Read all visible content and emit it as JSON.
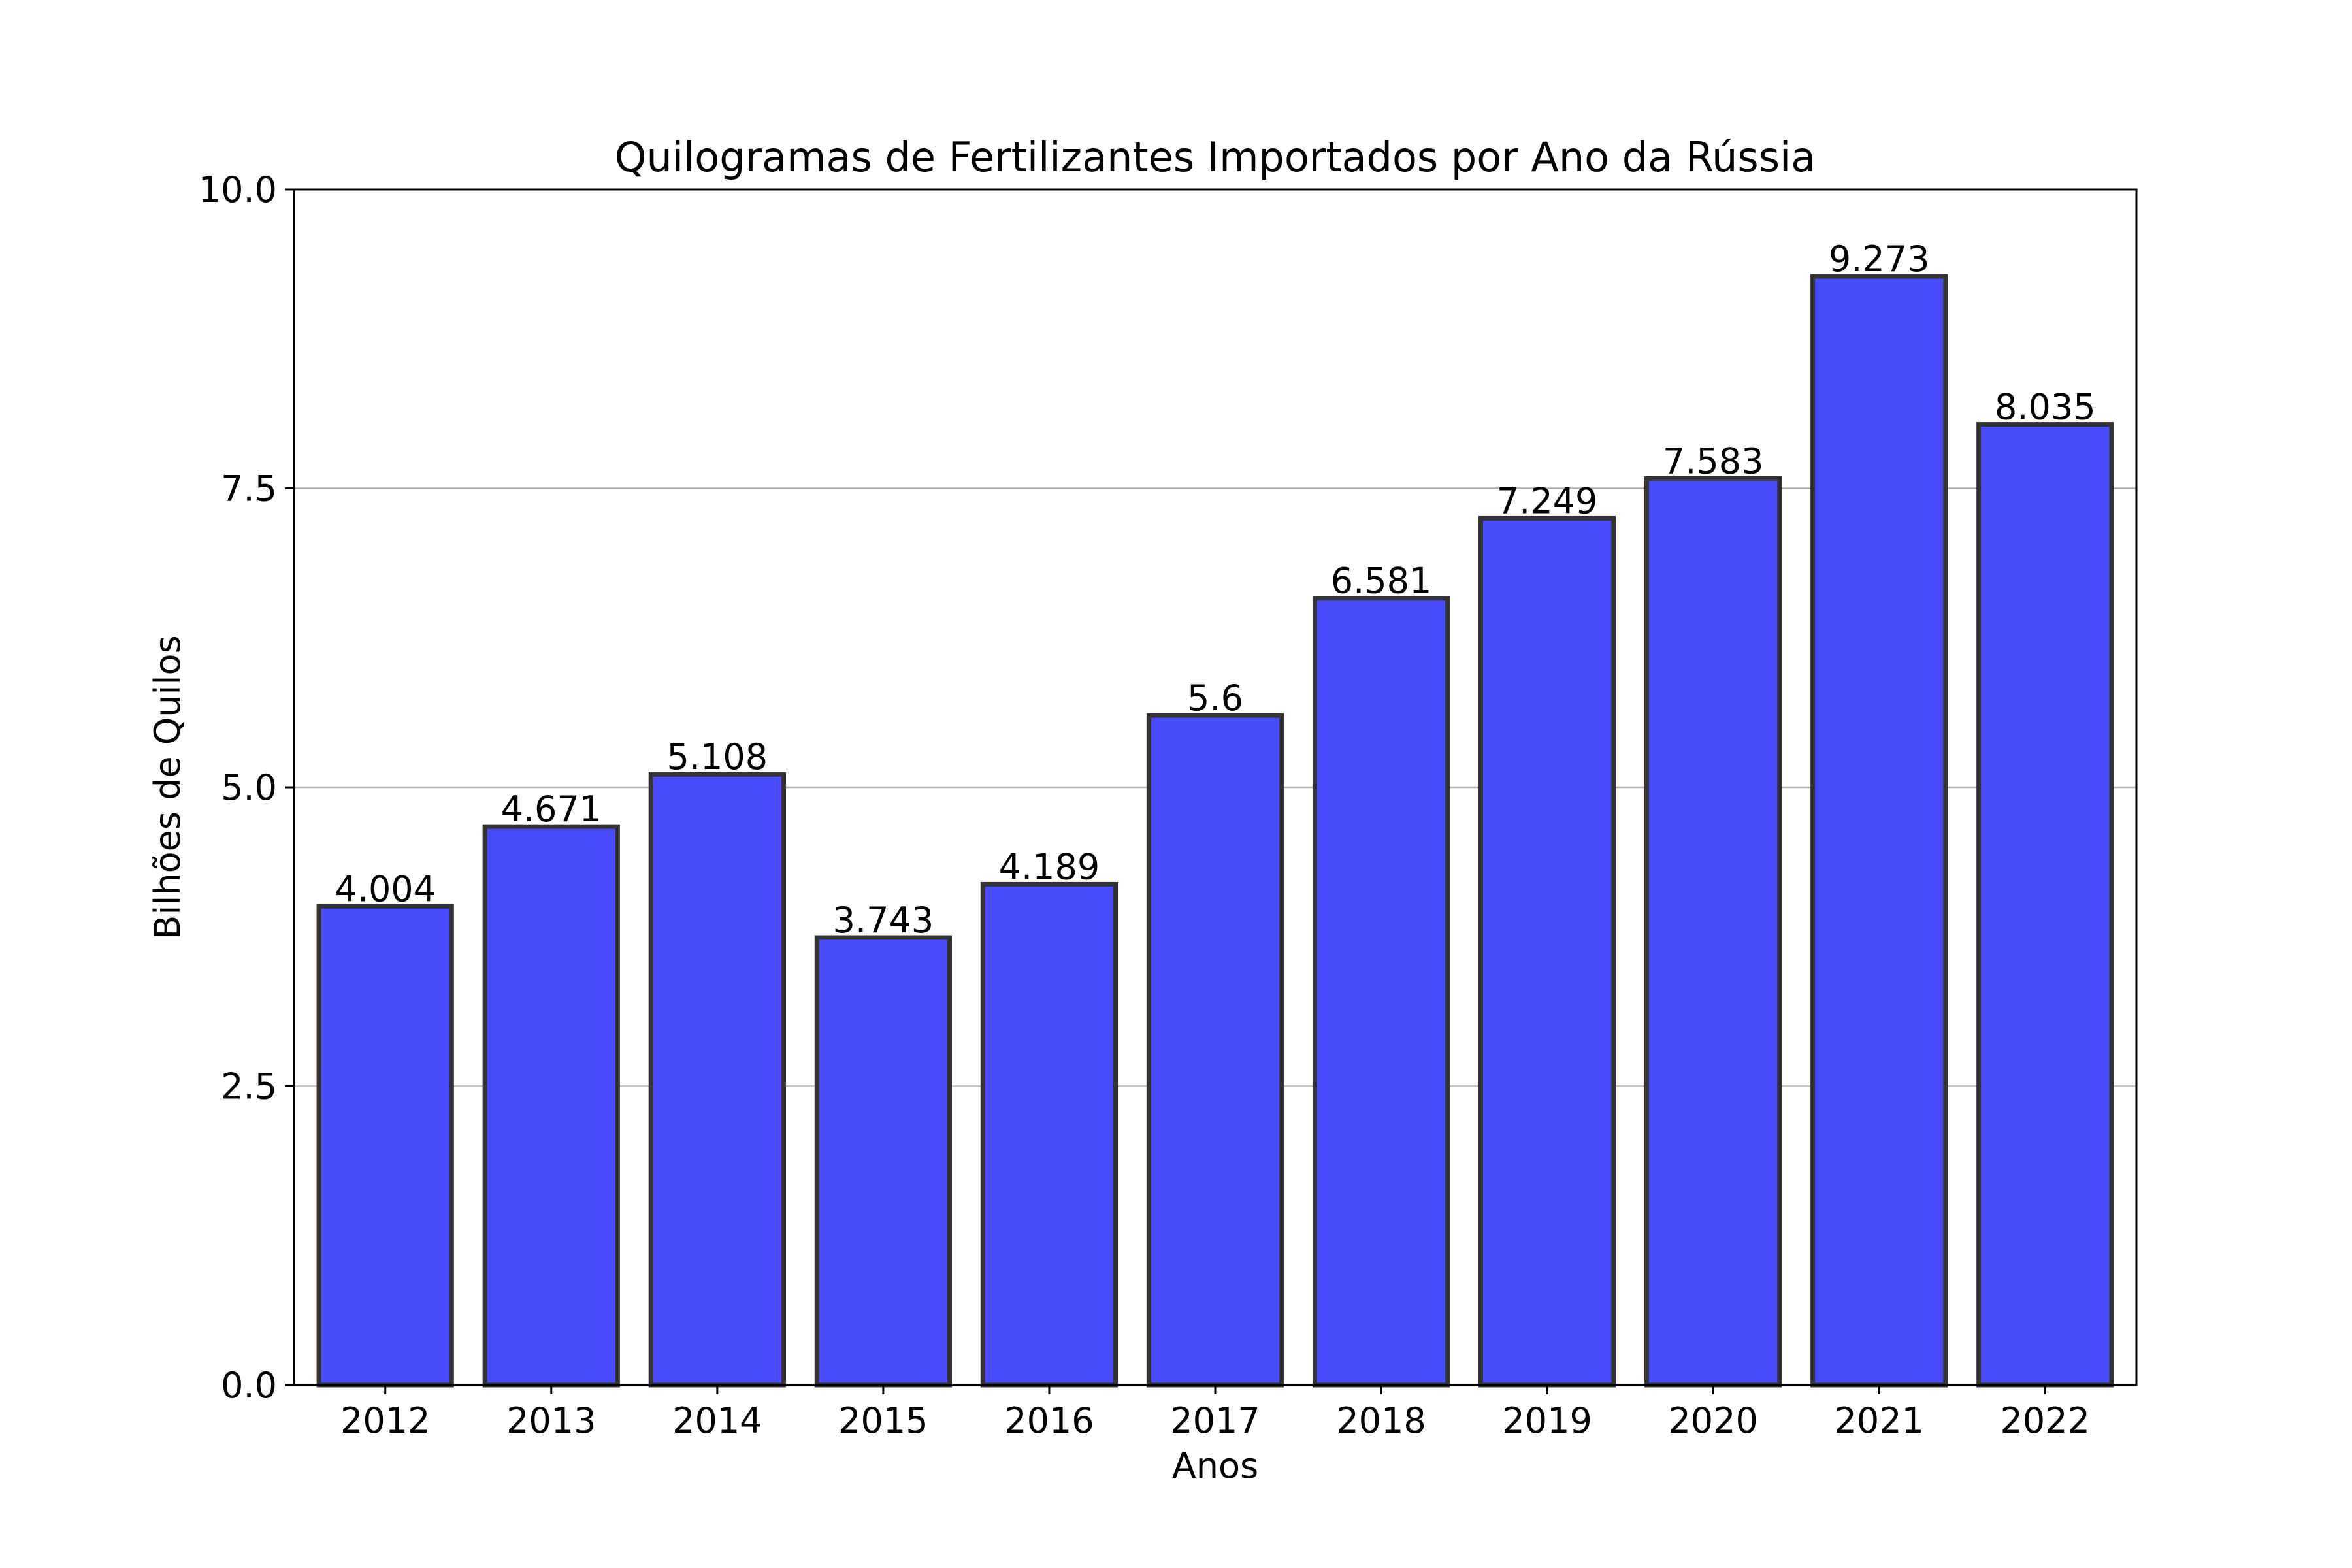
{
  "chart_data": {
    "type": "bar",
    "title": "Quilogramas de Fertilizantes Importados por Ano da Rússia",
    "xlabel": "Anos",
    "ylabel": "Bilhões de Quilos",
    "categories": [
      "2012",
      "2013",
      "2014",
      "2015",
      "2016",
      "2017",
      "2018",
      "2019",
      "2020",
      "2021",
      "2022"
    ],
    "values": [
      4.004,
      4.671,
      5.108,
      3.743,
      4.189,
      5.6,
      6.581,
      7.249,
      7.583,
      9.273,
      8.035
    ],
    "data_labels": [
      "4.004",
      "4.671",
      "5.108",
      "3.743",
      "4.189",
      "5.6",
      "6.581",
      "7.249",
      "7.583",
      "9.273",
      "8.035"
    ],
    "ylim": [
      0,
      10
    ],
    "yticks": [
      0,
      2.5,
      5,
      7.5,
      10
    ],
    "ytick_labels": [
      "0.0",
      "2.5",
      "5.0",
      "7.5",
      "10.0"
    ],
    "grid": "y",
    "legend": "none",
    "colors": {
      "bar_fill": "#4a4aff",
      "bar_edge": "#333333"
    }
  }
}
